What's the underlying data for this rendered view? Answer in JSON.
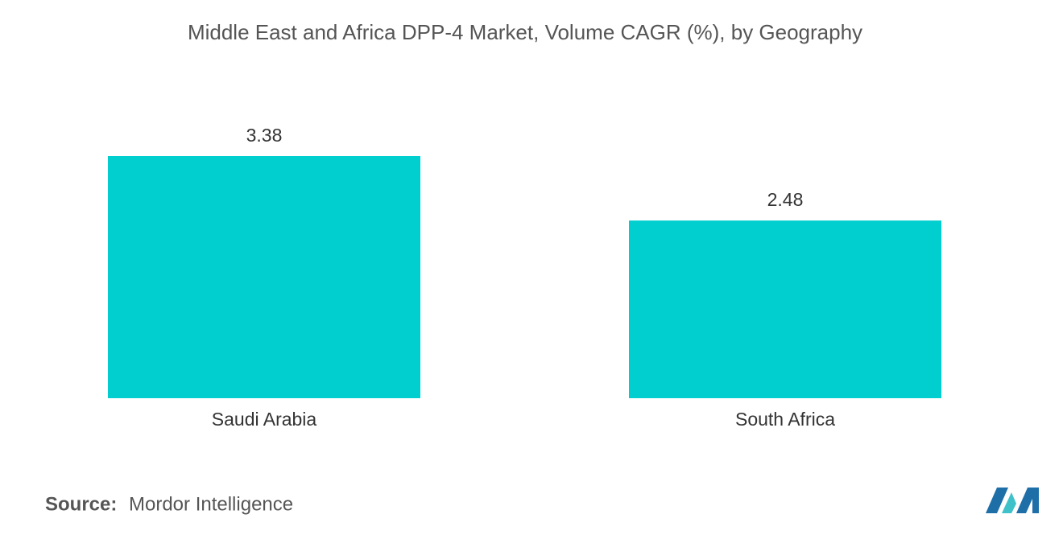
{
  "chart_data": {
    "type": "bar",
    "title": "Middle East and Africa DPP-4 Market, Volume CAGR (%), by Geography",
    "categories": [
      "Saudi Arabia",
      "South Africa"
    ],
    "values": [
      3.38,
      2.48
    ],
    "color": "#00cecf",
    "source_label": "Source:",
    "source": "Mordor Intelligence"
  }
}
